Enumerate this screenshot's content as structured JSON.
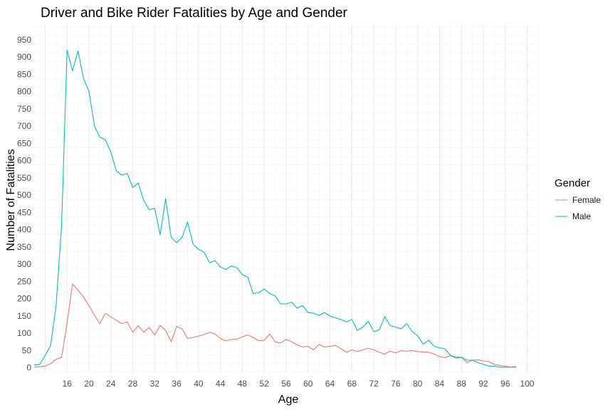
{
  "chart_data": {
    "type": "line",
    "title": "Driver and Bike Rider Fatalities by Age and Gender",
    "xlabel": "Age",
    "ylabel": "Number of Fatalities",
    "xlim": [
      10,
      102
    ],
    "ylim": [
      -15,
      995
    ],
    "x_ticks": [
      "16",
      "20",
      "24",
      "28",
      "32",
      "36",
      "40",
      "44",
      "48",
      "52",
      "56",
      "60",
      "64",
      "68",
      "72",
      "76",
      "80",
      "84",
      "88",
      "92",
      "96",
      "100"
    ],
    "y_ticks": [
      "0",
      "50",
      "100",
      "150",
      "200",
      "250",
      "300",
      "350",
      "400",
      "450",
      "500",
      "550",
      "600",
      "650",
      "700",
      "750",
      "800",
      "850",
      "900",
      "950"
    ],
    "grid": true,
    "legend": {
      "title": "Gender",
      "position": "right",
      "entries": [
        "Female",
        "Male"
      ]
    },
    "series": [
      {
        "name": "Female",
        "color": "#F8766D",
        "x": [
          10,
          11,
          12,
          13,
          14,
          15,
          16,
          17,
          18,
          19,
          20,
          21,
          22,
          23,
          24,
          25,
          26,
          27,
          28,
          29,
          30,
          31,
          32,
          33,
          34,
          35,
          36,
          37,
          38,
          39,
          40,
          41,
          42,
          43,
          44,
          45,
          46,
          47,
          48,
          49,
          50,
          51,
          52,
          53,
          54,
          55,
          56,
          57,
          58,
          59,
          60,
          61,
          62,
          63,
          64,
          65,
          66,
          67,
          68,
          69,
          70,
          71,
          72,
          73,
          74,
          75,
          76,
          77,
          78,
          79,
          80,
          81,
          82,
          83,
          84,
          85,
          86,
          87,
          88,
          89,
          90,
          91,
          92,
          93,
          94,
          95,
          96,
          97,
          98
        ],
        "values": [
          2,
          3,
          5,
          12,
          25,
          30,
          130,
          243,
          225,
          205,
          180,
          152,
          128,
          158,
          147,
          138,
          128,
          133,
          103,
          122,
          103,
          117,
          95,
          123,
          108,
          75,
          120,
          113,
          85,
          88,
          92,
          96,
          103,
          98,
          85,
          78,
          82,
          83,
          90,
          95,
          88,
          78,
          80,
          98,
          75,
          72,
          82,
          75,
          67,
          60,
          62,
          52,
          68,
          60,
          62,
          65,
          55,
          45,
          52,
          47,
          52,
          57,
          52,
          45,
          40,
          48,
          43,
          50,
          48,
          50,
          47,
          46,
          45,
          40,
          32,
          30,
          35,
          32,
          30,
          15,
          22,
          23,
          20,
          18,
          10,
          7,
          5,
          2,
          4
        ]
      },
      {
        "name": "Male",
        "color": "#00BFC4",
        "x": [
          10,
          11,
          12,
          13,
          14,
          15,
          16,
          17,
          18,
          19,
          20,
          21,
          22,
          23,
          24,
          25,
          26,
          27,
          28,
          29,
          30,
          31,
          32,
          33,
          34,
          35,
          36,
          37,
          38,
          39,
          40,
          41,
          42,
          43,
          44,
          45,
          46,
          47,
          48,
          49,
          50,
          51,
          52,
          53,
          54,
          55,
          56,
          57,
          58,
          59,
          60,
          61,
          62,
          63,
          64,
          65,
          66,
          67,
          68,
          69,
          70,
          71,
          72,
          73,
          74,
          75,
          76,
          77,
          78,
          79,
          80,
          81,
          82,
          83,
          84,
          85,
          86,
          87,
          88,
          89,
          90,
          91,
          92,
          93,
          94,
          95,
          96,
          97,
          98
        ],
        "values": [
          8,
          10,
          35,
          65,
          180,
          410,
          920,
          860,
          918,
          838,
          800,
          700,
          668,
          660,
          625,
          570,
          558,
          563,
          522,
          535,
          485,
          458,
          462,
          385,
          490,
          378,
          362,
          378,
          422,
          358,
          343,
          335,
          305,
          310,
          292,
          285,
          295,
          290,
          270,
          262,
          215,
          218,
          228,
          215,
          208,
          185,
          185,
          190,
          173,
          180,
          160,
          158,
          152,
          160,
          150,
          145,
          140,
          133,
          140,
          108,
          118,
          135,
          105,
          110,
          148,
          122,
          118,
          113,
          128,
          105,
          93,
          68,
          80,
          62,
          58,
          55,
          36,
          28,
          31,
          22,
          22,
          15,
          10,
          5,
          5,
          2,
          2,
          2,
          2
        ]
      }
    ]
  }
}
